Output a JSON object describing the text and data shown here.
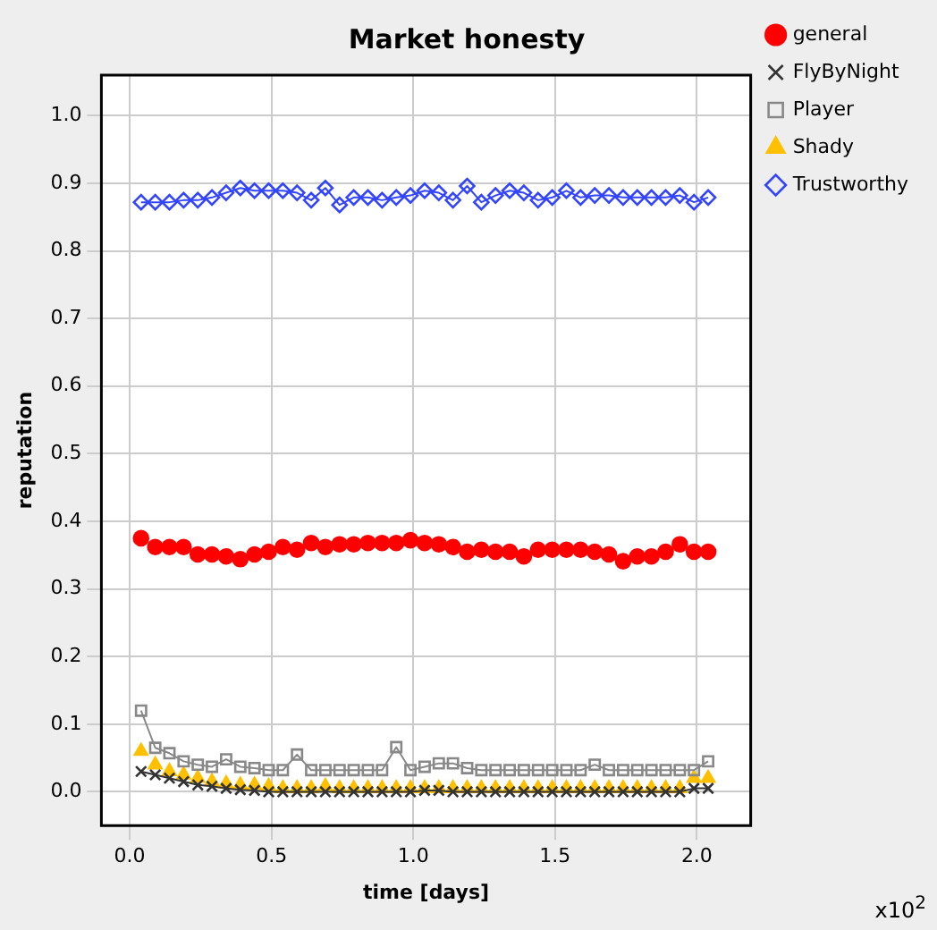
{
  "chart_data": {
    "type": "line",
    "title": "Market honesty",
    "xlabel": "time [days]",
    "ylabel": "reputation",
    "annotations": [
      "x10$^{2}$"
    ],
    "x": [
      0.04,
      0.09,
      0.14,
      0.19,
      0.24,
      0.29,
      0.34,
      0.39,
      0.44,
      0.49,
      0.54,
      0.59,
      0.64,
      0.69,
      0.74,
      0.79,
      0.84,
      0.89,
      0.94,
      0.99,
      1.04,
      1.09,
      1.14,
      1.19,
      1.24,
      1.29,
      1.34,
      1.39,
      1.44,
      1.49,
      1.54,
      1.59,
      1.64,
      1.69,
      1.74,
      1.79,
      1.84,
      1.89,
      1.94,
      1.99,
      2.04
    ],
    "series": [
      {
        "name": "general",
        "type": "scatter",
        "color": "#ff0000",
        "marker": "circle",
        "values": [
          0.375,
          0.362,
          0.362,
          0.362,
          0.351,
          0.351,
          0.348,
          0.344,
          0.351,
          0.355,
          0.362,
          0.358,
          0.368,
          0.362,
          0.366,
          0.366,
          0.368,
          0.368,
          0.368,
          0.372,
          0.368,
          0.366,
          0.362,
          0.355,
          0.358,
          0.355,
          0.355,
          0.348,
          0.358,
          0.358,
          0.358,
          0.358,
          0.355,
          0.351,
          0.341,
          0.348,
          0.348,
          0.355,
          0.366,
          0.355,
          0.355
        ]
      },
      {
        "name": "FlyByNight",
        "color": "#333333",
        "marker": "cross",
        "line_style": "solid",
        "values": [
          0.03,
          0.025,
          0.02,
          0.015,
          0.01,
          0.008,
          0.005,
          0.003,
          0.002,
          0,
          0,
          0,
          0,
          0,
          0,
          0,
          0,
          0,
          0,
          0,
          0.002,
          0.002,
          0,
          0,
          0,
          0,
          0,
          0,
          0,
          0,
          0,
          0,
          0,
          0,
          0,
          0,
          0,
          0,
          0,
          0.005,
          0.005
        ]
      },
      {
        "name": "Player",
        "color": "#888888",
        "marker": "square",
        "line_style": "solid",
        "values": [
          0.12,
          0.065,
          0.057,
          0.045,
          0.04,
          0.037,
          0.048,
          0.037,
          0.035,
          0.032,
          0.032,
          0.055,
          0.032,
          0.032,
          0.032,
          0.032,
          0.032,
          0.032,
          0.066,
          0.032,
          0.037,
          0.042,
          0.042,
          0.035,
          0.032,
          0.032,
          0.032,
          0.032,
          0.032,
          0.032,
          0.032,
          0.032,
          0.04,
          0.032,
          0.032,
          0.032,
          0.032,
          0.032,
          0.032,
          0.032,
          0.045
        ]
      },
      {
        "name": "Shady",
        "type": "scatter",
        "color": "#ffc000",
        "marker": "triangle",
        "values": [
          0.06,
          0.04,
          0.03,
          0.025,
          0.02,
          0.015,
          0.012,
          0.01,
          0.01,
          0.008,
          0.005,
          0.005,
          0.005,
          0.008,
          0.005,
          0.005,
          0.005,
          0.005,
          0.005,
          0.005,
          0.005,
          0.005,
          0.005,
          0.005,
          0.005,
          0.005,
          0.005,
          0.005,
          0.005,
          0.005,
          0.005,
          0.005,
          0.005,
          0.005,
          0.005,
          0.005,
          0.005,
          0.005,
          0.005,
          0.02,
          0.02
        ]
      },
      {
        "name": "Trustworthy",
        "color": "#3344ff",
        "marker": "diamond",
        "line_style": "solid",
        "values": [
          0.872,
          0.872,
          0.872,
          0.875,
          0.875,
          0.879,
          0.886,
          0.893,
          0.889,
          0.889,
          0.889,
          0.886,
          0.875,
          0.893,
          0.868,
          0.879,
          0.879,
          0.875,
          0.879,
          0.882,
          0.889,
          0.886,
          0.875,
          0.896,
          0.872,
          0.882,
          0.889,
          0.886,
          0.875,
          0.879,
          0.889,
          0.879,
          0.882,
          0.882,
          0.879,
          0.879,
          0.879,
          0.879,
          0.882,
          0.872,
          0.879
        ]
      }
    ],
    "xlim": [
      -0.1,
      2.19
    ],
    "xticks": [
      {
        "value": 0,
        "label": "0.0"
      },
      0.5,
      {
        "value": 1,
        "label": "1.0"
      },
      1.5,
      {
        "value": 2,
        "label": "2.0"
      }
    ],
    "ylim": [
      -0.05,
      1.06
    ],
    "yticks": [
      {
        "value": 0,
        "label": "0.0"
      },
      0.1,
      0.2,
      0.3,
      0.4,
      0.5,
      0.6,
      0.7,
      0.8,
      0.9,
      {
        "value": 1,
        "label": "1.0"
      }
    ],
    "grid": true,
    "legend": "top right"
  }
}
